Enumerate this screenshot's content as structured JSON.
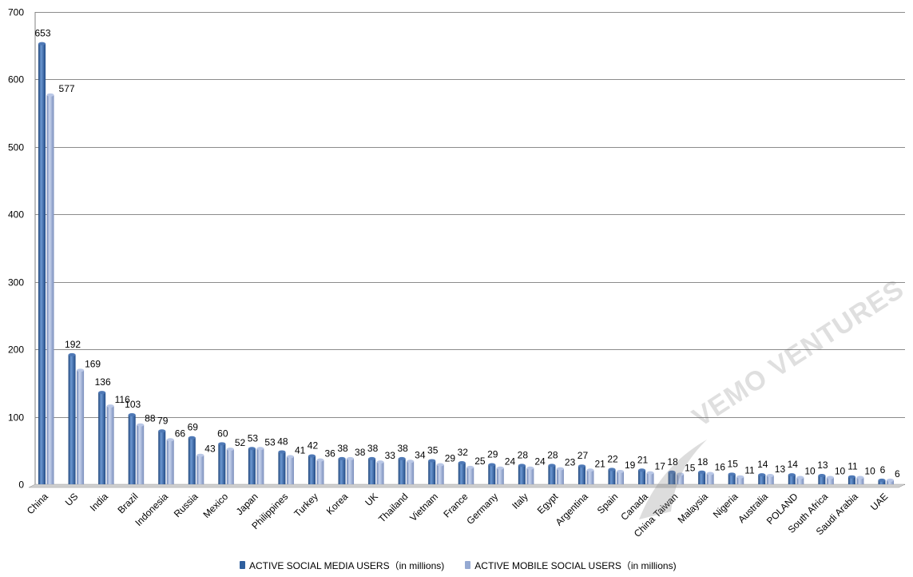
{
  "chart_data": {
    "type": "bar",
    "categories": [
      "China",
      "US",
      "India",
      "Brazil",
      "Indonesia",
      "Russia",
      "Mexico",
      "Japan",
      "Philippines",
      "Turkey",
      "Korea",
      "UK",
      "Thailand",
      "Vietnam",
      "France",
      "Germany",
      "Italy",
      "Egypt",
      "Argentina",
      "Spain",
      "Canada",
      "China Taiwan",
      "Malaysia",
      "Nigeria",
      "Australia",
      "POLAND",
      "South Africa",
      "Saudi Arabia",
      "UAE"
    ],
    "series": [
      {
        "name": "ACTIVE SOCIAL MEDIA USERS（in millions)",
        "color": "#2f5f9e",
        "values": [
          653,
          192,
          136,
          103,
          79,
          69,
          60,
          53,
          48,
          42,
          38,
          38,
          38,
          35,
          32,
          29,
          28,
          28,
          27,
          22,
          21,
          18,
          18,
          15,
          14,
          14,
          13,
          11,
          6
        ]
      },
      {
        "name": "ACTIVE MOBILE SOCIAL USERS（in millions)",
        "color": "#95a9d2",
        "values": [
          577,
          169,
          116,
          88,
          66,
          43,
          52,
          53,
          41,
          36,
          38,
          33,
          34,
          29,
          25,
          24,
          24,
          23,
          21,
          19,
          17,
          15,
          16,
          11,
          13,
          10,
          10,
          10,
          6
        ]
      }
    ],
    "yticks": [
      "0",
      "100",
      "200",
      "300",
      "400",
      "500",
      "600",
      "700"
    ],
    "ylim": [
      0,
      700
    ],
    "grid": true,
    "legend_position": "bottom"
  },
  "watermark": {
    "text": "VEMO VENTURES"
  }
}
